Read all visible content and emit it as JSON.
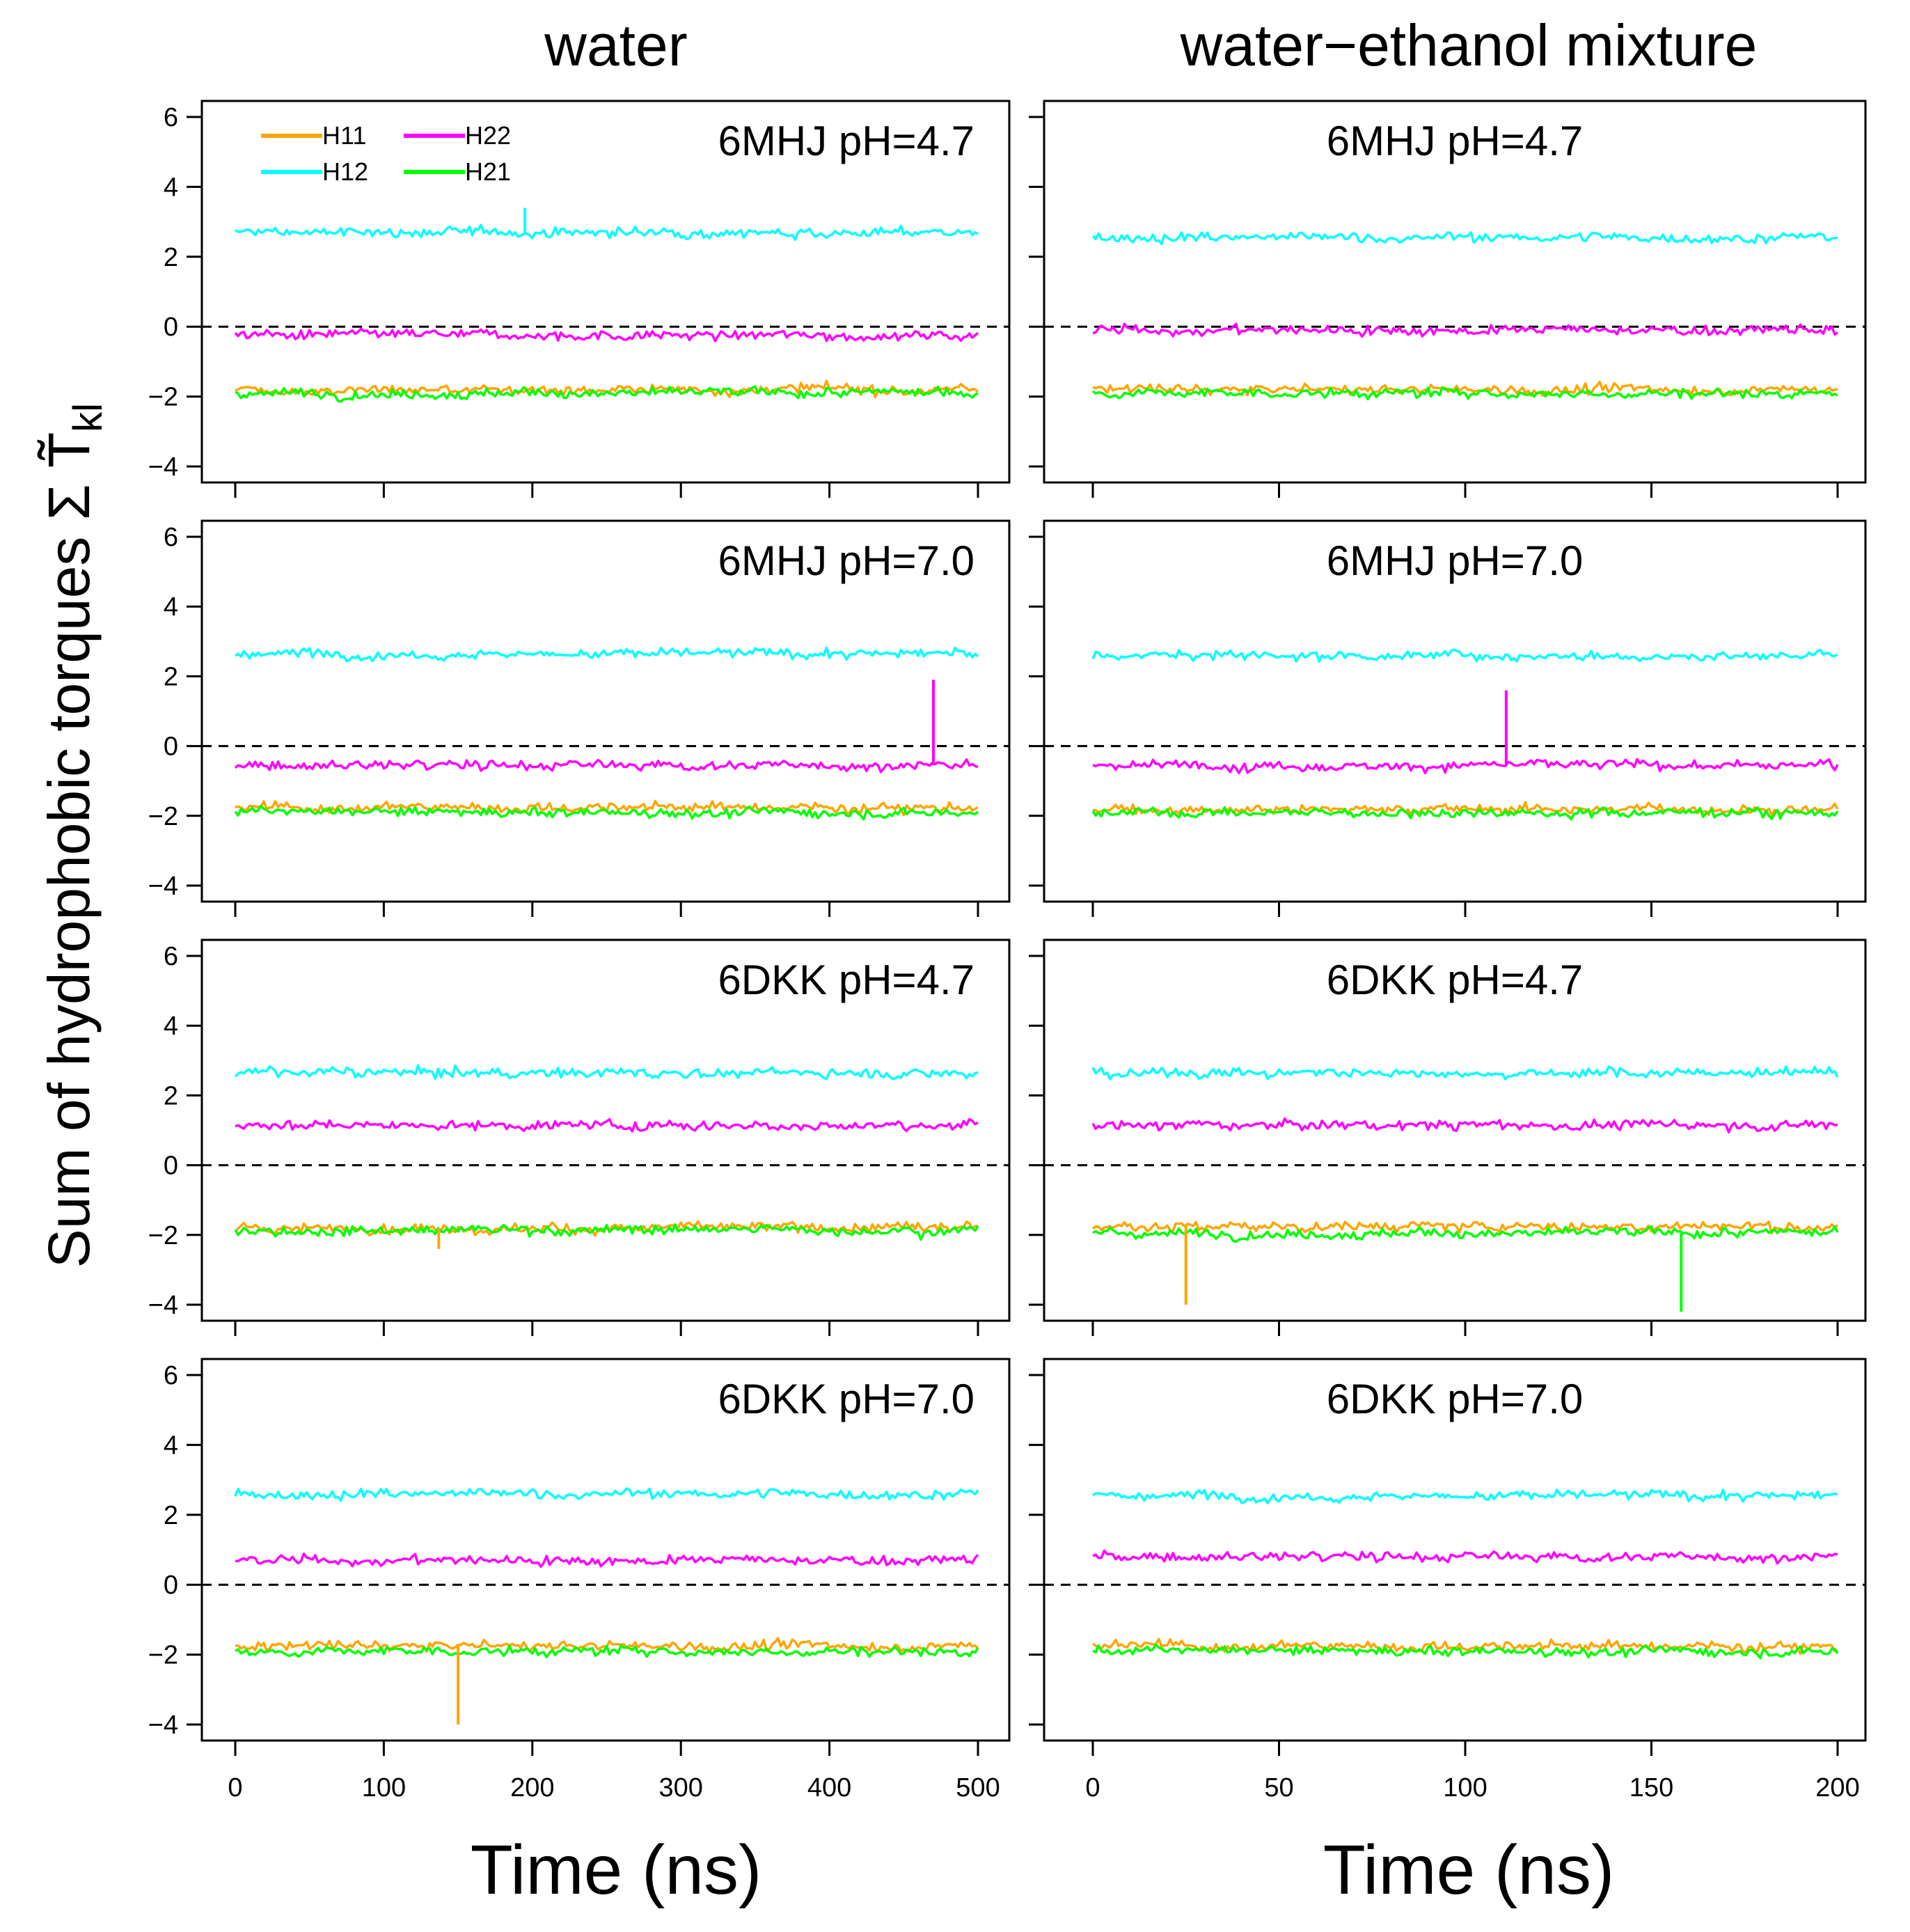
{
  "chart_data": {
    "type": "line",
    "ylabel": "Sum of hydrophobic torques  Σ T̃",
    "ylabel_subscript": "kl",
    "column_titles": [
      "water",
      "water−ethanol mixture"
    ],
    "x_axes": [
      {
        "label": "Time (ns)",
        "range": [
          0,
          500
        ],
        "ticks": [
          "0",
          "100",
          "200",
          "300",
          "400",
          "500"
        ]
      },
      {
        "label": "Time (ns)",
        "range": [
          0,
          200
        ],
        "ticks": [
          "0",
          "50",
          "100",
          "150",
          "200"
        ]
      }
    ],
    "y_axis": {
      "range": [
        -4,
        6
      ],
      "ticks": [
        "6",
        "4",
        "2",
        "0",
        "−2",
        "−4"
      ],
      "reference_line": 0
    },
    "legend": [
      {
        "name": "H11",
        "color": "#ffa500"
      },
      {
        "name": "H22",
        "color": "#ff00ff"
      },
      {
        "name": "H12",
        "color": "#00ffff"
      },
      {
        "name": "H21",
        "color": "#00ff00"
      }
    ],
    "panels": [
      {
        "label": "6MHJ pH=4.7",
        "column": 0,
        "row": 0,
        "series": {
          "H12": 2.7,
          "H22": -0.25,
          "H11": -1.8,
          "H21": -1.9
        },
        "spikes": [
          {
            "series": "H12",
            "x": 195,
            "to": 3.4
          }
        ]
      },
      {
        "label": "6MHJ pH=4.7",
        "column": 1,
        "row": 0,
        "series": {
          "H12": 2.55,
          "H22": -0.1,
          "H11": -1.8,
          "H21": -1.9
        },
        "spikes": []
      },
      {
        "label": "6MHJ pH=7.0",
        "column": 0,
        "row": 1,
        "series": {
          "H12": 2.65,
          "H22": -0.55,
          "H11": -1.75,
          "H21": -1.9
        },
        "spikes": [
          {
            "series": "H22",
            "x": 470,
            "to": 1.9
          }
        ]
      },
      {
        "label": "6MHJ pH=7.0",
        "column": 1,
        "row": 1,
        "series": {
          "H12": 2.6,
          "H22": -0.55,
          "H11": -1.8,
          "H21": -1.9
        },
        "spikes": [
          {
            "series": "H22",
            "x": 111,
            "to": 1.6
          }
        ]
      },
      {
        "label": "6DKK pH=4.7",
        "column": 0,
        "row": 2,
        "series": {
          "H12": 2.65,
          "H22": 1.15,
          "H11": -1.8,
          "H21": -1.85
        },
        "spikes": [
          {
            "series": "H11",
            "x": 137,
            "to": -2.4
          }
        ]
      },
      {
        "label": "6DKK pH=4.7",
        "column": 1,
        "row": 2,
        "series": {
          "H12": 2.65,
          "H22": 1.15,
          "H11": -1.75,
          "H21": -1.95
        },
        "spikes": [
          {
            "series": "H11",
            "x": 25,
            "to": -4.0
          },
          {
            "series": "H21",
            "x": 158,
            "to": -4.2
          }
        ]
      },
      {
        "label": "6DKK pH=7.0",
        "column": 0,
        "row": 3,
        "series": {
          "H12": 2.6,
          "H22": 0.7,
          "H11": -1.75,
          "H21": -1.9
        },
        "spikes": [
          {
            "series": "H11",
            "x": 150,
            "to": -4.0
          }
        ]
      },
      {
        "label": "6DKK pH=7.0",
        "column": 1,
        "row": 3,
        "series": {
          "H12": 2.55,
          "H22": 0.8,
          "H11": -1.75,
          "H21": -1.9
        },
        "spikes": []
      }
    ]
  }
}
